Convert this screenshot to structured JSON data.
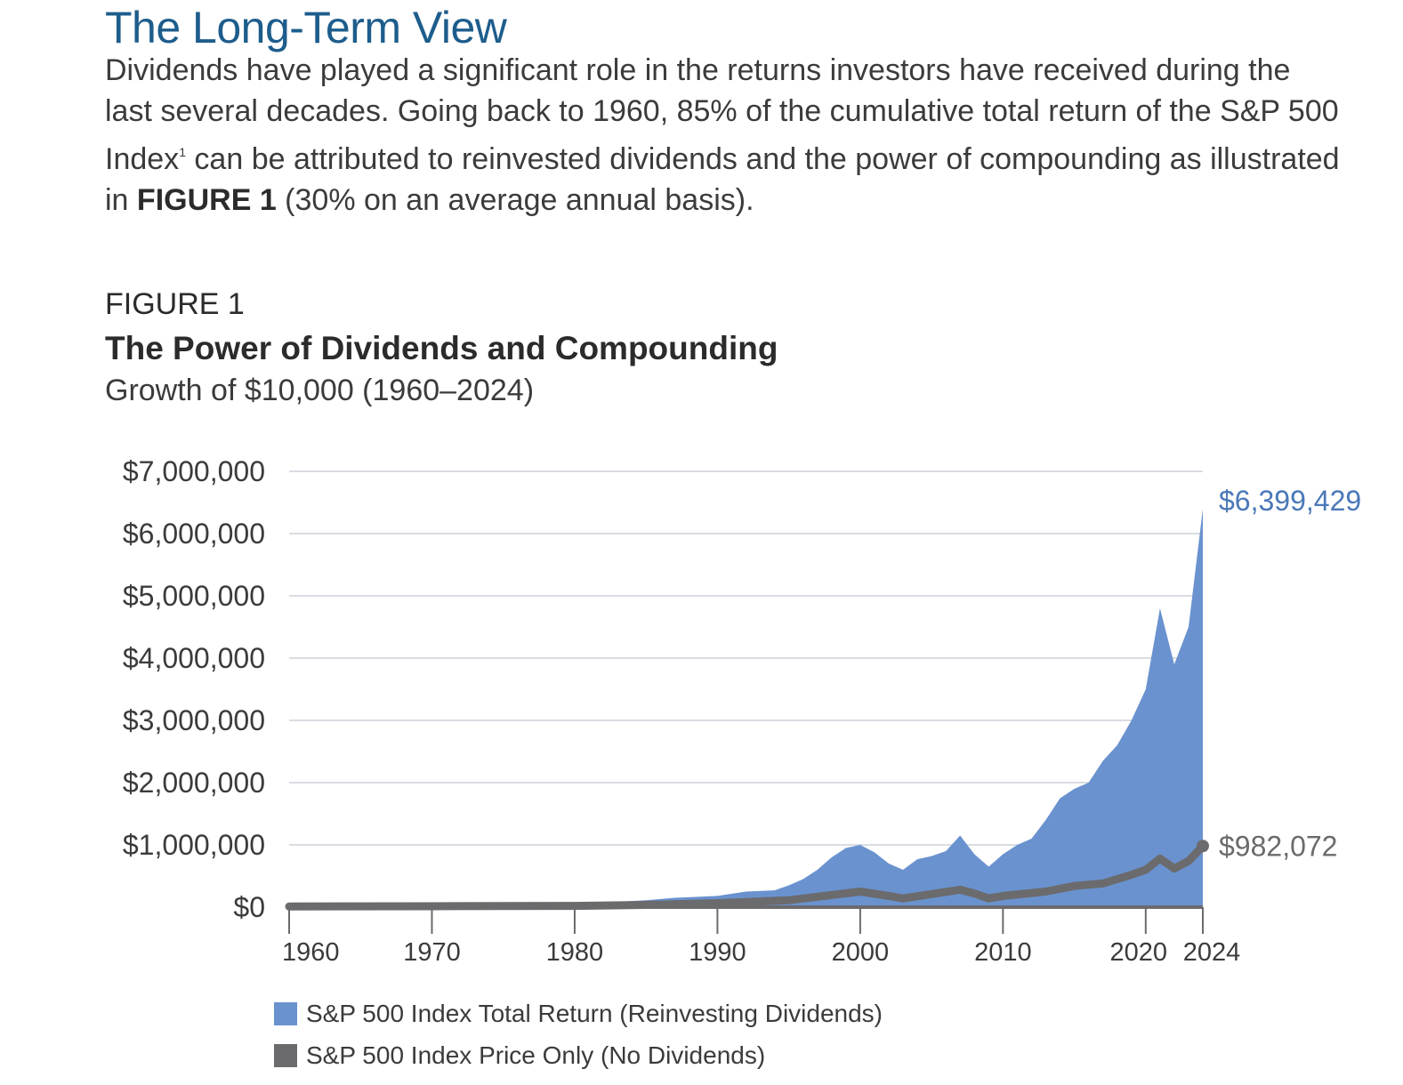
{
  "heading": {
    "title": "The Long-Term View",
    "body_part1": "Dividends have played a significant role in the returns investors have received during the last several decades. Going back to 1960, 85% of the cumulative total return of the S&P 500 Index",
    "footnote": "1",
    "body_part2": " can be attributed to reinvested dividends and the power of compounding as illustrated in ",
    "body_bold": "FIGURE 1",
    "body_part3": " (30% on an average annual basis)."
  },
  "figure": {
    "label": "FIGURE 1",
    "title": "The Power of Dividends and Compounding",
    "subtitle": "Growth of $10,000 (1960–2024)"
  },
  "colors": {
    "total_return": "#6a92cf",
    "price_only": "#6b6b6d",
    "gridline": "#d9dde2",
    "axis": "#6b6b6d"
  },
  "chart_data": {
    "type": "area",
    "xlim": [
      1960,
      2024
    ],
    "ylim": [
      0,
      7000000
    ],
    "y_ticks": [
      0,
      1000000,
      2000000,
      3000000,
      4000000,
      5000000,
      6000000,
      7000000
    ],
    "y_tick_labels": [
      "$0",
      "$1,000,000",
      "$2,000,000",
      "$3,000,000",
      "$4,000,000",
      "$5,000,000",
      "$6,000,000",
      "$7,000,000"
    ],
    "x_ticks": [
      1960,
      1970,
      1980,
      1990,
      2000,
      2010,
      2020,
      2024
    ],
    "x_tick_labels": [
      "1960",
      "1970",
      "1980",
      "1990",
      "2000",
      "2010",
      "2020",
      "2024"
    ],
    "grid": true,
    "legend_position": "bottom-left",
    "series": [
      {
        "name": "S&P 500 Index Total Return (Reinvesting Dividends)",
        "type": "area",
        "end_label": "$6,399,429",
        "points": [
          [
            1960,
            10000
          ],
          [
            1965,
            20000
          ],
          [
            1970,
            25000
          ],
          [
            1975,
            30000
          ],
          [
            1980,
            50000
          ],
          [
            1985,
            110000
          ],
          [
            1987,
            150000
          ],
          [
            1990,
            180000
          ],
          [
            1992,
            250000
          ],
          [
            1994,
            270000
          ],
          [
            1995,
            350000
          ],
          [
            1996,
            450000
          ],
          [
            1997,
            600000
          ],
          [
            1998,
            800000
          ],
          [
            1999,
            950000
          ],
          [
            2000,
            1000000
          ],
          [
            2001,
            880000
          ],
          [
            2002,
            700000
          ],
          [
            2003,
            600000
          ],
          [
            2004,
            770000
          ],
          [
            2005,
            820000
          ],
          [
            2006,
            900000
          ],
          [
            2007,
            1150000
          ],
          [
            2008,
            850000
          ],
          [
            2009,
            650000
          ],
          [
            2010,
            850000
          ],
          [
            2011,
            1000000
          ],
          [
            2012,
            1100000
          ],
          [
            2013,
            1400000
          ],
          [
            2014,
            1750000
          ],
          [
            2015,
            1900000
          ],
          [
            2016,
            2000000
          ],
          [
            2017,
            2350000
          ],
          [
            2018,
            2600000
          ],
          [
            2019,
            3000000
          ],
          [
            2020,
            3500000
          ],
          [
            2021,
            4800000
          ],
          [
            2022,
            3900000
          ],
          [
            2023,
            4500000
          ],
          [
            2024,
            6399429
          ]
        ]
      },
      {
        "name": "S&P 500 Index Price Only (No Dividends)",
        "type": "line",
        "end_label": "$982,072",
        "points": [
          [
            1960,
            10000
          ],
          [
            1970,
            15000
          ],
          [
            1980,
            20000
          ],
          [
            1985,
            35000
          ],
          [
            1990,
            65000
          ],
          [
            1995,
            110000
          ],
          [
            2000,
            250000
          ],
          [
            2002,
            180000
          ],
          [
            2003,
            140000
          ],
          [
            2007,
            280000
          ],
          [
            2008,
            220000
          ],
          [
            2009,
            140000
          ],
          [
            2010,
            180000
          ],
          [
            2013,
            250000
          ],
          [
            2015,
            340000
          ],
          [
            2017,
            380000
          ],
          [
            2018,
            450000
          ],
          [
            2019,
            520000
          ],
          [
            2020,
            600000
          ],
          [
            2021,
            780000
          ],
          [
            2022,
            620000
          ],
          [
            2023,
            740000
          ],
          [
            2024,
            982072
          ]
        ]
      }
    ]
  }
}
